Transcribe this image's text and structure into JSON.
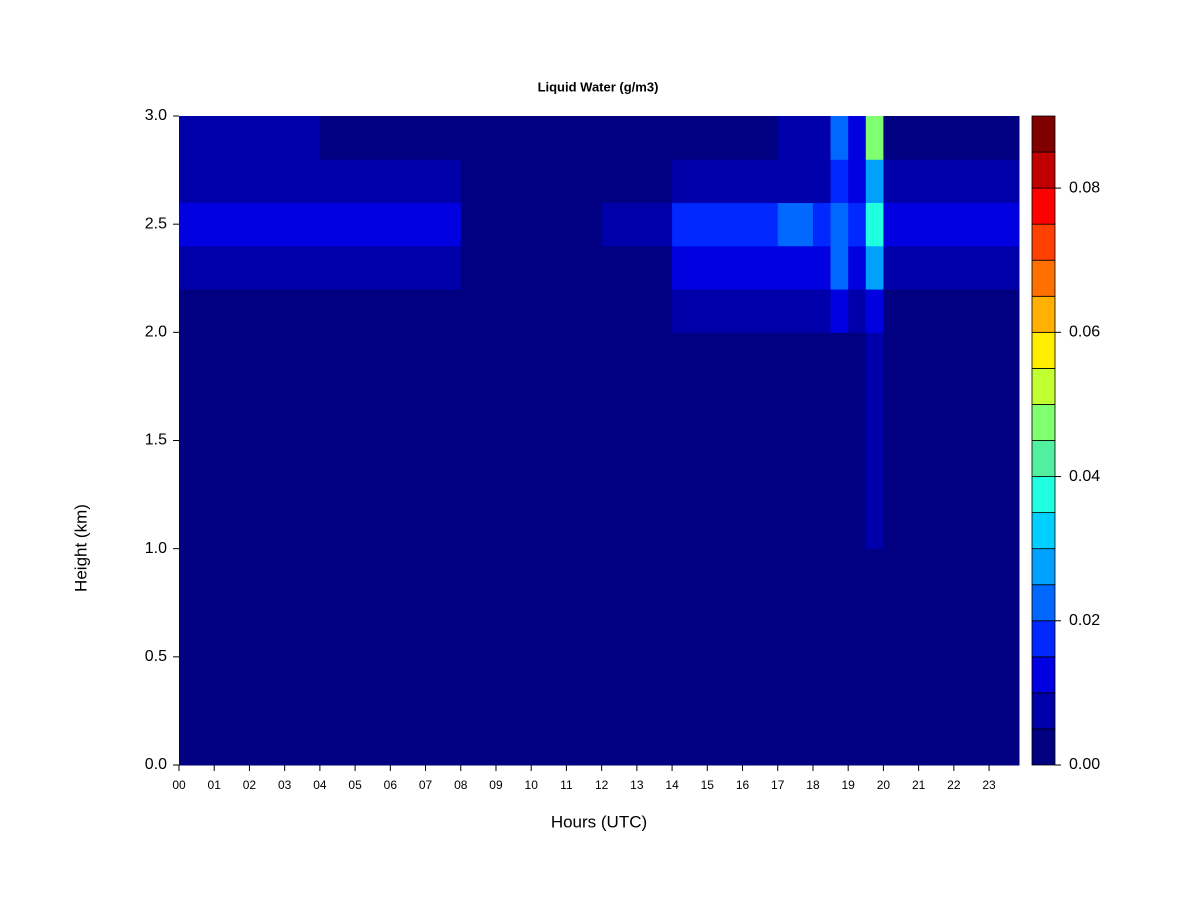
{
  "chart_data": {
    "type": "heatmap",
    "title": "Liquid Water (g/m3)",
    "x_label": "Hours (UTC)",
    "y_label": "Height (km)",
    "xlim": [
      0,
      23.85
    ],
    "ylim": [
      0,
      3
    ],
    "xticks": [
      {
        "value": 0,
        "label": "00"
      },
      {
        "value": 1,
        "label": "01"
      },
      {
        "value": 2,
        "label": "02"
      },
      {
        "value": 3,
        "label": "03"
      },
      {
        "value": 4,
        "label": "04"
      },
      {
        "value": 5,
        "label": "05"
      },
      {
        "value": 6,
        "label": "06"
      },
      {
        "value": 7,
        "label": "07"
      },
      {
        "value": 8,
        "label": "08"
      },
      {
        "value": 9,
        "label": "09"
      },
      10,
      11,
      12,
      13,
      14,
      15,
      16,
      17,
      18,
      19,
      20,
      21,
      22,
      23
    ],
    "yticks": [
      {
        "value": 0,
        "label": "0.0"
      },
      {
        "value": 0.5,
        "label": "0.5"
      },
      {
        "value": 1,
        "label": "1.0"
      },
      1.5,
      {
        "value": 2,
        "label": "2.0"
      },
      2.5,
      {
        "value": 3,
        "label": "3.0"
      }
    ],
    "xbins": [
      0,
      2,
      4,
      6,
      8,
      10,
      12,
      14,
      16,
      17,
      18,
      18.5,
      19,
      19.5,
      20,
      22,
      23.85
    ],
    "ybins": [
      0,
      1,
      2,
      2.2,
      2.4,
      2.6,
      2.8,
      3.0
    ],
    "values": [
      [
        0.002,
        0.002,
        0.002,
        0.002,
        0.002,
        0.002,
        0.002,
        0.002,
        0.002,
        0.002,
        0.002,
        0.002,
        0.002,
        0.002,
        0.002,
        0.002
      ],
      [
        0.002,
        0.002,
        0.002,
        0.002,
        0.002,
        0.002,
        0.002,
        0.002,
        0.002,
        0.002,
        0.002,
        0.003,
        0.002,
        0.006,
        0.002,
        0.002
      ],
      [
        0.002,
        0.002,
        0.002,
        0.002,
        0.002,
        0.002,
        0.002,
        0.007,
        0.008,
        0.008,
        0.008,
        0.012,
        0.009,
        0.013,
        0.003,
        0.002
      ],
      [
        0.008,
        0.008,
        0.008,
        0.007,
        0.002,
        0.002,
        0.004,
        0.011,
        0.013,
        0.013,
        0.012,
        0.02,
        0.014,
        0.025,
        0.009,
        0.009
      ],
      [
        0.013,
        0.013,
        0.012,
        0.01,
        0.002,
        0.002,
        0.009,
        0.016,
        0.019,
        0.021,
        0.019,
        0.024,
        0.017,
        0.035,
        0.014,
        0.012
      ],
      [
        0.007,
        0.007,
        0.007,
        0.006,
        0.002,
        0.002,
        0.003,
        0.008,
        0.009,
        0.009,
        0.009,
        0.017,
        0.011,
        0.025,
        0.008,
        0.008
      ],
      [
        0.007,
        0.006,
        0.002,
        0.002,
        0.002,
        0.002,
        0.002,
        0.002,
        0.004,
        0.007,
        0.009,
        0.02,
        0.012,
        0.045,
        0.004,
        0.004
      ]
    ],
    "colorbar": {
      "levels": [
        0,
        0.005,
        0.01,
        0.015,
        0.02,
        0.025,
        0.03,
        0.035,
        0.04,
        0.045,
        0.05,
        0.055,
        0.06,
        0.065,
        0.07,
        0.075,
        0.08,
        0.085,
        0.09
      ],
      "colors": [
        "#000080",
        "#0000aa",
        "#0000e0",
        "#0028ff",
        "#0068ff",
        "#00a0ff",
        "#00d0ff",
        "#20ffe0",
        "#50f0a0",
        "#80ff70",
        "#c0ff30",
        "#ffee00",
        "#ffb000",
        "#ff7000",
        "#ff4000",
        "#ff0000",
        "#c00000",
        "#800000"
      ],
      "ticks": [
        {
          "value": 0,
          "label": "0.00"
        },
        0.02,
        0.04,
        0.06,
        0.08
      ]
    }
  }
}
